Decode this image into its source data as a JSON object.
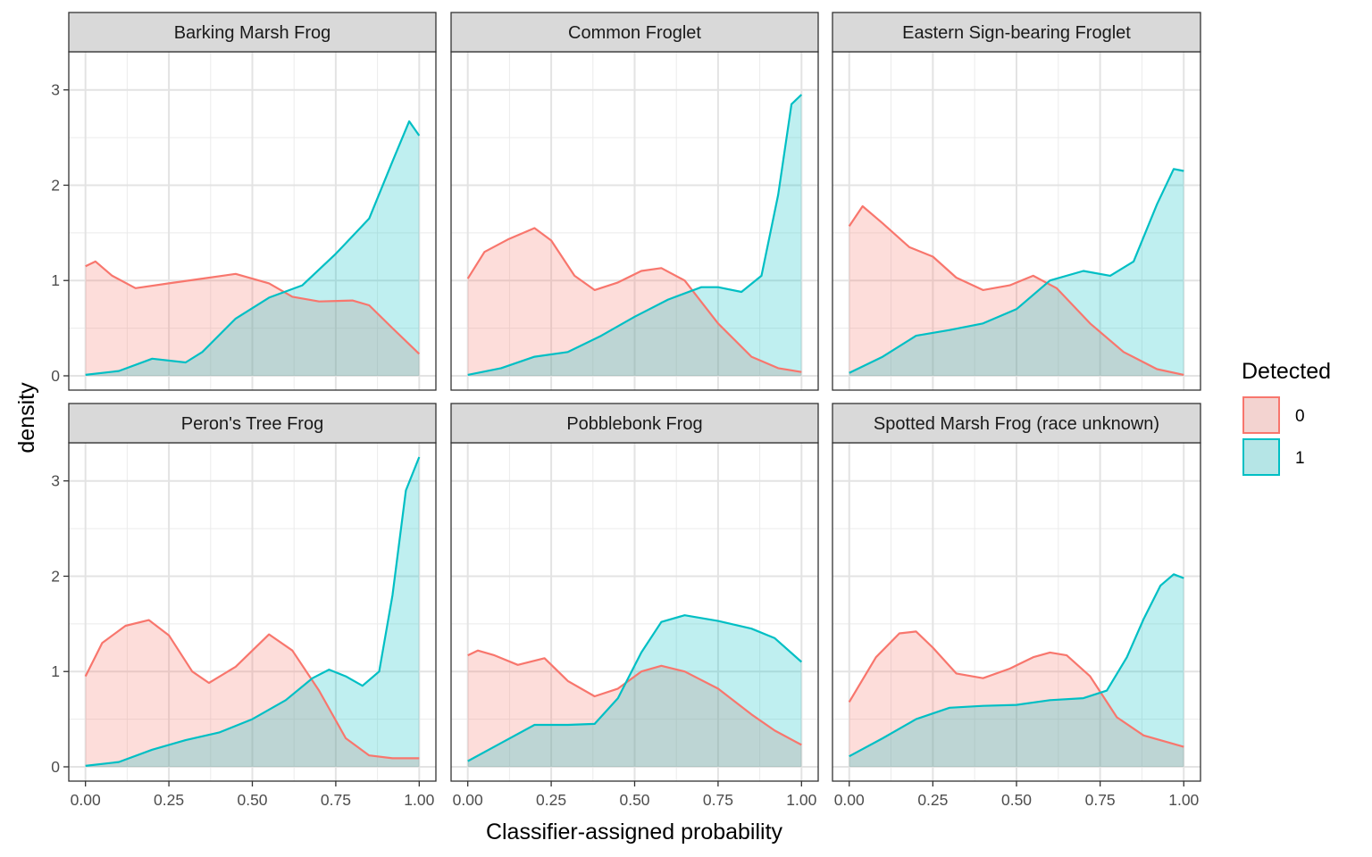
{
  "chart_data": {
    "type": "area",
    "xlabel": "Classifier-assigned probability",
    "ylabel": "density",
    "xlim": [
      -0.05,
      1.05
    ],
    "ylim": [
      -0.15,
      3.4
    ],
    "x_ticks": [
      0,
      0.25,
      0.5,
      0.75,
      1
    ],
    "x_tick_labels": [
      "0.00",
      "0.25",
      "0.50",
      "0.75",
      "1.00"
    ],
    "y_ticks": [
      0,
      1,
      2,
      3
    ],
    "y_tick_labels": [
      "0",
      "1",
      "2",
      "3"
    ],
    "grid": true,
    "legend": {
      "title": "Detected",
      "position": "right",
      "entries": [
        {
          "label": "0",
          "line_color": "#F8766D",
          "fill_color": "#F8766D"
        },
        {
          "label": "1",
          "line_color": "#00BFC4",
          "fill_color": "#00BFC4"
        }
      ]
    },
    "facets": [
      {
        "title": "Barking Marsh Frog",
        "series": [
          {
            "name": "0",
            "x": [
              0,
              0.03,
              0.08,
              0.15,
              0.25,
              0.35,
              0.45,
              0.55,
              0.62,
              0.7,
              0.8,
              0.85,
              0.92,
              1.0
            ],
            "y": [
              1.15,
              1.2,
              1.05,
              0.92,
              0.97,
              1.02,
              1.07,
              0.97,
              0.83,
              0.78,
              0.79,
              0.74,
              0.5,
              0.23
            ]
          },
          {
            "name": "1",
            "x": [
              0,
              0.1,
              0.2,
              0.3,
              0.35,
              0.45,
              0.55,
              0.65,
              0.75,
              0.85,
              0.92,
              0.97,
              1.0
            ],
            "y": [
              0.01,
              0.05,
              0.18,
              0.14,
              0.25,
              0.6,
              0.82,
              0.95,
              1.28,
              1.65,
              2.25,
              2.67,
              2.52
            ]
          }
        ]
      },
      {
        "title": "Common Froglet",
        "series": [
          {
            "name": "0",
            "x": [
              0,
              0.05,
              0.12,
              0.2,
              0.25,
              0.32,
              0.38,
              0.45,
              0.52,
              0.58,
              0.65,
              0.75,
              0.85,
              0.93,
              1.0
            ],
            "y": [
              1.02,
              1.3,
              1.43,
              1.55,
              1.42,
              1.05,
              0.9,
              0.98,
              1.1,
              1.13,
              1.0,
              0.55,
              0.2,
              0.08,
              0.04
            ]
          },
          {
            "name": "1",
            "x": [
              0,
              0.1,
              0.2,
              0.3,
              0.4,
              0.5,
              0.6,
              0.7,
              0.75,
              0.82,
              0.88,
              0.93,
              0.97,
              1.0
            ],
            "y": [
              0.01,
              0.08,
              0.2,
              0.25,
              0.42,
              0.62,
              0.8,
              0.93,
              0.93,
              0.88,
              1.05,
              1.9,
              2.85,
              2.95
            ]
          }
        ]
      },
      {
        "title": "Eastern Sign-bearing Froglet",
        "series": [
          {
            "name": "0",
            "x": [
              0,
              0.04,
              0.1,
              0.18,
              0.25,
              0.32,
              0.4,
              0.48,
              0.55,
              0.62,
              0.72,
              0.82,
              0.92,
              1.0
            ],
            "y": [
              1.57,
              1.78,
              1.6,
              1.35,
              1.25,
              1.03,
              0.9,
              0.95,
              1.05,
              0.92,
              0.55,
              0.25,
              0.07,
              0.01
            ]
          },
          {
            "name": "1",
            "x": [
              0,
              0.1,
              0.2,
              0.3,
              0.4,
              0.5,
              0.6,
              0.7,
              0.78,
              0.85,
              0.92,
              0.97,
              1.0
            ],
            "y": [
              0.03,
              0.2,
              0.42,
              0.48,
              0.55,
              0.7,
              1.0,
              1.1,
              1.05,
              1.2,
              1.8,
              2.17,
              2.15
            ]
          }
        ]
      },
      {
        "title": "Peron's Tree Frog",
        "series": [
          {
            "name": "0",
            "x": [
              0,
              0.05,
              0.12,
              0.19,
              0.25,
              0.32,
              0.37,
              0.45,
              0.55,
              0.62,
              0.7,
              0.78,
              0.85,
              0.92,
              1.0
            ],
            "y": [
              0.95,
              1.3,
              1.48,
              1.54,
              1.38,
              1.0,
              0.88,
              1.05,
              1.39,
              1.22,
              0.8,
              0.3,
              0.12,
              0.09,
              0.09
            ]
          },
          {
            "name": "1",
            "x": [
              0,
              0.1,
              0.2,
              0.3,
              0.4,
              0.5,
              0.6,
              0.68,
              0.73,
              0.78,
              0.83,
              0.88,
              0.92,
              0.96,
              1.0
            ],
            "y": [
              0.01,
              0.05,
              0.18,
              0.28,
              0.36,
              0.5,
              0.7,
              0.93,
              1.02,
              0.95,
              0.85,
              1.0,
              1.8,
              2.9,
              3.25
            ]
          }
        ]
      },
      {
        "title": "Pobblebonk Frog",
        "series": [
          {
            "name": "0",
            "x": [
              0,
              0.03,
              0.08,
              0.15,
              0.23,
              0.3,
              0.38,
              0.45,
              0.52,
              0.58,
              0.65,
              0.75,
              0.85,
              0.92,
              1.0
            ],
            "y": [
              1.17,
              1.22,
              1.17,
              1.07,
              1.14,
              0.9,
              0.74,
              0.82,
              1.0,
              1.06,
              1.0,
              0.82,
              0.55,
              0.38,
              0.23
            ]
          },
          {
            "name": "1",
            "x": [
              0,
              0.1,
              0.2,
              0.3,
              0.38,
              0.45,
              0.52,
              0.58,
              0.65,
              0.75,
              0.85,
              0.92,
              1.0
            ],
            "y": [
              0.06,
              0.25,
              0.44,
              0.44,
              0.45,
              0.72,
              1.2,
              1.52,
              1.59,
              1.53,
              1.45,
              1.35,
              1.1
            ]
          }
        ]
      },
      {
        "title": "Spotted Marsh Frog (race unknown)",
        "series": [
          {
            "name": "0",
            "x": [
              0,
              0.08,
              0.15,
              0.2,
              0.25,
              0.32,
              0.4,
              0.48,
              0.55,
              0.6,
              0.65,
              0.72,
              0.8,
              0.88,
              1.0
            ],
            "y": [
              0.68,
              1.15,
              1.4,
              1.42,
              1.25,
              0.98,
              0.93,
              1.03,
              1.15,
              1.2,
              1.17,
              0.95,
              0.52,
              0.33,
              0.21
            ]
          },
          {
            "name": "1",
            "x": [
              0,
              0.1,
              0.2,
              0.3,
              0.4,
              0.5,
              0.6,
              0.7,
              0.77,
              0.83,
              0.88,
              0.93,
              0.97,
              1.0
            ],
            "y": [
              0.11,
              0.3,
              0.5,
              0.62,
              0.64,
              0.65,
              0.7,
              0.72,
              0.8,
              1.15,
              1.55,
              1.9,
              2.02,
              1.98
            ]
          }
        ]
      }
    ]
  }
}
